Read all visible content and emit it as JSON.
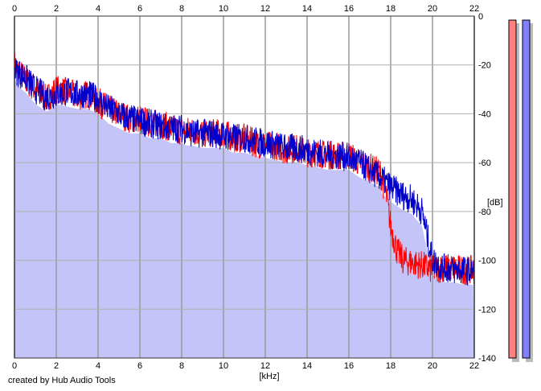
{
  "footer_text": "created by Hub Audio Tools",
  "chart_data": {
    "type": "line",
    "xlabel": "[kHz]",
    "ylabel": "[dB]",
    "xlim": [
      0,
      22
    ],
    "ylim": [
      -140,
      0
    ],
    "x_ticks": [
      0,
      2,
      4,
      6,
      8,
      10,
      12,
      14,
      16,
      18,
      20,
      22
    ],
    "y_ticks": [
      0,
      -20,
      -40,
      -60,
      -80,
      -100,
      -120,
      -140
    ],
    "grid": true,
    "series": [
      {
        "color": "#ff0000",
        "x": [
          0,
          0.5,
          1,
          1.5,
          2,
          2.5,
          3,
          3.5,
          4,
          4.5,
          5,
          5.5,
          6,
          6.5,
          7,
          7.5,
          8,
          8.5,
          9,
          9.5,
          10,
          10.5,
          11,
          11.5,
          12,
          12.5,
          13,
          13.5,
          14,
          14.5,
          15,
          15.5,
          16,
          16.5,
          17,
          17.5,
          17.8,
          18,
          18.3,
          18.6,
          19,
          19.5,
          20,
          20.5,
          21,
          21.5,
          22
        ],
        "y": [
          -20,
          -26,
          -30,
          -34,
          -30,
          -31,
          -33,
          -32,
          -35,
          -38,
          -40,
          -42,
          -42,
          -44,
          -44,
          -46,
          -47,
          -47,
          -48,
          -48,
          -48,
          -50,
          -50,
          -52,
          -53,
          -53,
          -55,
          -54,
          -56,
          -56,
          -57,
          -57,
          -57,
          -60,
          -62,
          -64,
          -74,
          -86,
          -96,
          -100,
          -101,
          -102,
          -104,
          -103,
          -103,
          -104,
          -104
        ]
      },
      {
        "color": "#0000cc",
        "x": [
          0,
          0.5,
          1,
          1.5,
          2,
          2.5,
          3,
          3.5,
          4,
          4.5,
          5,
          5.5,
          6,
          6.5,
          7,
          7.5,
          8,
          8.5,
          9,
          9.5,
          10,
          10.5,
          11,
          11.5,
          12,
          12.5,
          13,
          13.5,
          14,
          14.5,
          15,
          15.5,
          16,
          16.5,
          17,
          17.5,
          18,
          18.5,
          19,
          19.5,
          19.8,
          20,
          20.5,
          21,
          21.5,
          22
        ],
        "y": [
          -22,
          -25,
          -30,
          -33,
          -32,
          -31,
          -32,
          -32,
          -34,
          -38,
          -40,
          -42,
          -43,
          -44,
          -45,
          -46,
          -46,
          -48,
          -48,
          -48,
          -49,
          -50,
          -50,
          -51,
          -52,
          -53,
          -54,
          -54,
          -55,
          -56,
          -57,
          -57,
          -58,
          -60,
          -63,
          -66,
          -70,
          -73,
          -75,
          -80,
          -92,
          -100,
          -103,
          -104,
          -104,
          -105
        ]
      }
    ],
    "fill_color": "#c4c4f8",
    "level_meters": [
      {
        "color": "#ff8080"
      },
      {
        "color": "#8080ff"
      }
    ]
  }
}
